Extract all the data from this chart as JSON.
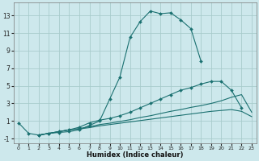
{
  "xlabel": "Humidex (Indice chaleur)",
  "bg_color": "#cde8ec",
  "grid_color": "#a8cccc",
  "line_color": "#1a7070",
  "xlim": [
    -0.5,
    23.5
  ],
  "ylim": [
    -1.5,
    14.5
  ],
  "yticks": [
    -1,
    1,
    3,
    5,
    7,
    9,
    11,
    13
  ],
  "xticks": [
    0,
    1,
    2,
    3,
    4,
    5,
    6,
    7,
    8,
    9,
    10,
    11,
    12,
    13,
    14,
    15,
    16,
    17,
    18,
    19,
    20,
    21,
    22,
    23
  ],
  "lines": [
    {
      "x": [
        0,
        1,
        2,
        3,
        4,
        5,
        6,
        7,
        8,
        9,
        10,
        11,
        12,
        13,
        14,
        15,
        16,
        17,
        18,
        19
      ],
      "y": [
        0.8,
        -0.4,
        -0.6,
        -0.4,
        -0.3,
        -0.2,
        0.0,
        0.5,
        1.0,
        3.5,
        6.0,
        10.5,
        12.3,
        13.5,
        13.2,
        13.3,
        12.5,
        11.5,
        7.8,
        null
      ],
      "markers": true
    },
    {
      "x": [
        2,
        3,
        4,
        5,
        6,
        7,
        8,
        9,
        10,
        11,
        12,
        13,
        14,
        15,
        16,
        17,
        18,
        19,
        20,
        21,
        22
      ],
      "y": [
        -0.6,
        -0.4,
        -0.2,
        0.0,
        0.3,
        0.8,
        1.1,
        1.3,
        1.6,
        2.0,
        2.5,
        3.0,
        3.5,
        4.0,
        4.5,
        4.8,
        5.2,
        5.5,
        5.5,
        4.5,
        2.5
      ],
      "markers": true
    },
    {
      "x": [
        2,
        3,
        4,
        5,
        6,
        7,
        8,
        9,
        10,
        11,
        12,
        13,
        14,
        15,
        16,
        17,
        18,
        19,
        20,
        21,
        22,
        23
      ],
      "y": [
        -0.6,
        -0.4,
        -0.2,
        0.0,
        0.15,
        0.35,
        0.6,
        0.75,
        0.95,
        1.15,
        1.4,
        1.6,
        1.85,
        2.1,
        2.3,
        2.55,
        2.75,
        3.0,
        3.3,
        3.7,
        4.0,
        2.0
      ],
      "markers": false
    },
    {
      "x": [
        2,
        3,
        4,
        5,
        6,
        7,
        8,
        9,
        10,
        11,
        12,
        13,
        14,
        15,
        16,
        17,
        18,
        19,
        20,
        21,
        22,
        23
      ],
      "y": [
        -0.6,
        -0.4,
        -0.2,
        0.0,
        0.1,
        0.25,
        0.45,
        0.6,
        0.75,
        0.9,
        1.05,
        1.2,
        1.35,
        1.5,
        1.65,
        1.8,
        1.95,
        2.1,
        2.2,
        2.3,
        2.1,
        1.5
      ],
      "markers": false
    }
  ]
}
